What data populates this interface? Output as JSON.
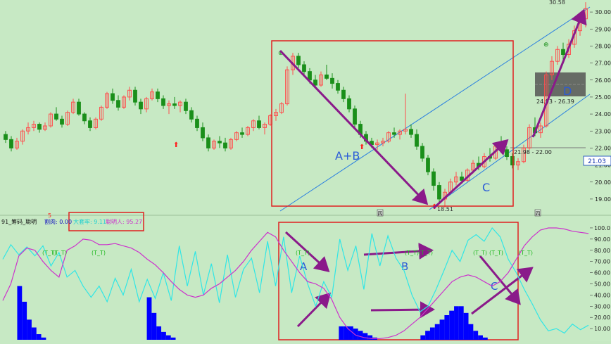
{
  "colors": {
    "background": "#c7e9c4",
    "axis_panel": "#c9ebc6",
    "up": "#ff4d4d",
    "down": "#1a8f1a",
    "cyan_line": "#2fe6e6",
    "magenta_line": "#cc33cc",
    "volume_bars": "#0000ff",
    "arrow": "#8a1a8a",
    "box": "#e02020",
    "trend_line": "#2a7fe0",
    "label_blue": "#2a5bd7",
    "band": "#555555",
    "header_blue": "#1010c0"
  },
  "price_axis": {
    "min": 18.5,
    "max": 30.5,
    "ticks": [
      "30.00",
      "29.00",
      "28.00",
      "27.00",
      "26.00",
      "25.00",
      "24.00",
      "23.00",
      "22.00",
      "21.00",
      "20.00",
      "19.00"
    ],
    "current_value": "21.03"
  },
  "indicator_axis": {
    "min": 0,
    "max": 105,
    "ticks": [
      "100.0",
      "90.00",
      "80.00",
      "70.00",
      "60.00",
      "50.00",
      "40.00",
      "30.00",
      "20.00",
      "10.00"
    ]
  },
  "annotations": {
    "high_label": "30.58",
    "low_label": "18.51",
    "range_label_1": "24.93 - 26.39",
    "range_label_2": "21.98 - 22.00",
    "label_ab": "A+B",
    "label_c": "C",
    "label_d": "D",
    "label_a_lower": "A",
    "label_b_lower": "B",
    "label_c_lower": "C",
    "tt_labels": [
      "(T_T)",
      "(T_T)",
      "(T_T)",
      "(T_T)",
      "(T_T)",
      "(T_T)",
      "(T_T)",
      "(T_T)",
      "(T_T)"
    ],
    "small_marker_top": "5",
    "date_marker_1": "四",
    "date_marker_2": "四"
  },
  "indicator_header": {
    "name": "91_筹码_聪明",
    "field_1": "割肉: 0.00",
    "field_2": "大套牢: 9.11",
    "field_3": "聪明人: 95.27"
  },
  "chart_data": [
    {
      "type": "candlestick",
      "title": "",
      "ylim": [
        18.5,
        30.5
      ],
      "candles": [
        [
          22.8,
          23.0,
          22.3,
          22.5
        ],
        [
          22.5,
          22.7,
          21.8,
          22.0
        ],
        [
          22.0,
          22.6,
          21.9,
          22.4
        ],
        [
          22.4,
          23.1,
          22.2,
          23.0
        ],
        [
          23.0,
          23.5,
          22.8,
          23.2
        ],
        [
          23.2,
          23.6,
          23.0,
          23.4
        ],
        [
          23.4,
          23.5,
          22.9,
          23.1
        ],
        [
          23.1,
          23.5,
          23.0,
          23.3
        ],
        [
          23.3,
          24.1,
          23.2,
          24.0
        ],
        [
          24.0,
          24.4,
          23.6,
          23.7
        ],
        [
          23.7,
          23.9,
          23.2,
          23.4
        ],
        [
          23.4,
          24.2,
          23.3,
          24.1
        ],
        [
          24.1,
          24.9,
          24.0,
          24.7
        ],
        [
          24.7,
          24.9,
          23.9,
          24.0
        ],
        [
          24.0,
          24.1,
          23.4,
          23.6
        ],
        [
          23.6,
          23.8,
          23.0,
          23.2
        ],
        [
          23.2,
          23.8,
          23.1,
          23.7
        ],
        [
          23.7,
          24.5,
          23.6,
          24.4
        ],
        [
          24.4,
          25.3,
          24.3,
          25.2
        ],
        [
          25.2,
          25.5,
          24.6,
          24.8
        ],
        [
          24.8,
          25.1,
          24.2,
          24.4
        ],
        [
          24.4,
          25.1,
          24.3,
          25.0
        ],
        [
          25.0,
          25.6,
          24.8,
          25.4
        ],
        [
          25.4,
          25.6,
          24.5,
          24.7
        ],
        [
          24.7,
          24.9,
          24.0,
          24.3
        ],
        [
          24.3,
          25.0,
          24.1,
          24.9
        ],
        [
          24.9,
          25.5,
          24.8,
          25.3
        ],
        [
          25.3,
          25.5,
          24.7,
          24.9
        ],
        [
          24.9,
          25.1,
          24.3,
          24.5
        ],
        [
          24.5,
          24.8,
          24.0,
          24.6
        ],
        [
          24.6,
          25.0,
          24.3,
          24.5
        ],
        [
          24.5,
          24.8,
          24.1,
          24.7
        ],
        [
          24.7,
          24.9,
          24.0,
          24.2
        ],
        [
          24.2,
          24.4,
          23.5,
          23.7
        ],
        [
          23.7,
          23.9,
          23.0,
          23.2
        ],
        [
          23.2,
          23.5,
          22.4,
          22.6
        ],
        [
          22.6,
          22.8,
          21.8,
          22.0
        ],
        [
          22.0,
          22.5,
          21.9,
          22.4
        ],
        [
          22.4,
          22.7,
          22.0,
          22.3
        ],
        [
          22.3,
          22.6,
          21.8,
          22.0
        ],
        [
          22.0,
          22.6,
          21.9,
          22.5
        ],
        [
          22.5,
          23.0,
          22.4,
          22.9
        ],
        [
          22.9,
          23.2,
          22.6,
          22.8
        ],
        [
          22.8,
          23.3,
          22.7,
          23.2
        ],
        [
          23.2,
          23.7,
          23.0,
          23.6
        ],
        [
          23.6,
          23.9,
          23.1,
          23.2
        ],
        [
          23.2,
          23.5,
          22.8,
          23.4
        ],
        [
          23.4,
          24.0,
          23.3,
          23.9
        ],
        [
          23.9,
          24.3,
          23.6,
          24.1
        ],
        [
          24.1,
          24.7,
          24.0,
          24.6
        ],
        [
          24.6,
          26.8,
          24.5,
          26.6
        ],
        [
          26.6,
          27.6,
          26.3,
          27.4
        ],
        [
          27.4,
          27.6,
          26.7,
          26.9
        ],
        [
          26.9,
          27.1,
          26.2,
          26.5
        ],
        [
          26.5,
          26.7,
          25.8,
          26.0
        ],
        [
          26.0,
          26.3,
          25.5,
          25.7
        ],
        [
          25.7,
          26.5,
          25.6,
          26.3
        ],
        [
          26.3,
          26.9,
          26.0,
          26.1
        ],
        [
          26.1,
          26.4,
          25.5,
          25.8
        ],
        [
          25.8,
          26.0,
          25.2,
          25.4
        ],
        [
          25.4,
          25.6,
          24.7,
          24.9
        ],
        [
          24.9,
          25.1,
          24.1,
          24.3
        ],
        [
          24.3,
          24.5,
          23.2,
          23.4
        ],
        [
          23.4,
          23.6,
          22.6,
          22.8
        ],
        [
          22.8,
          23.0,
          22.2,
          22.4
        ],
        [
          22.4,
          22.6,
          22.0,
          22.2
        ],
        [
          22.2,
          22.5,
          21.9,
          22.3
        ],
        [
          22.3,
          22.6,
          22.1,
          22.4
        ],
        [
          22.4,
          23.0,
          22.3,
          22.9
        ],
        [
          22.9,
          23.2,
          22.6,
          22.8
        ],
        [
          22.8,
          23.1,
          22.5,
          23.0
        ],
        [
          23.0,
          25.2,
          22.8,
          23.1
        ],
        [
          23.1,
          23.4,
          22.6,
          22.8
        ],
        [
          22.8,
          23.1,
          21.9,
          22.1
        ],
        [
          22.1,
          22.3,
          21.2,
          21.4
        ],
        [
          21.4,
          21.6,
          20.4,
          20.6
        ],
        [
          20.6,
          20.8,
          19.5,
          19.8
        ],
        [
          19.8,
          20.0,
          18.8,
          19.0
        ],
        [
          19.0,
          19.6,
          18.5,
          19.4
        ],
        [
          19.4,
          20.2,
          19.3,
          20.0
        ],
        [
          20.0,
          20.6,
          19.8,
          20.3
        ],
        [
          20.3,
          20.6,
          19.9,
          20.1
        ],
        [
          20.1,
          20.8,
          20.0,
          20.7
        ],
        [
          20.7,
          21.3,
          20.5,
          21.1
        ],
        [
          21.1,
          21.5,
          20.7,
          20.9
        ],
        [
          20.9,
          21.7,
          20.8,
          21.5
        ],
        [
          21.5,
          22.0,
          21.2,
          21.4
        ],
        [
          21.4,
          22.3,
          21.3,
          22.1
        ],
        [
          22.1,
          22.7,
          21.8,
          21.9
        ],
        [
          21.9,
          22.1,
          21.3,
          21.5
        ],
        [
          21.5,
          21.7,
          20.8,
          21.0
        ],
        [
          21.0,
          21.4,
          20.7,
          21.2
        ],
        [
          21.2,
          22.2,
          21.1,
          22.0
        ],
        [
          22.0,
          23.4,
          21.9,
          23.2
        ],
        [
          23.2,
          23.8,
          22.7,
          22.9
        ],
        [
          22.9,
          23.5,
          22.6,
          23.3
        ],
        [
          23.3,
          26.5,
          23.2,
          26.3
        ],
        [
          26.3,
          27.4,
          26.0,
          27.1
        ],
        [
          27.1,
          28.0,
          26.9,
          27.8
        ],
        [
          27.8,
          28.2,
          27.2,
          27.5
        ],
        [
          27.5,
          28.4,
          27.3,
          28.1
        ],
        [
          28.1,
          29.2,
          27.9,
          28.9
        ],
        [
          28.9,
          29.9,
          28.6,
          29.6
        ],
        [
          29.6,
          30.58,
          29.1,
          30.2
        ]
      ]
    },
    {
      "type": "line",
      "title": "",
      "ylim": [
        0,
        105
      ],
      "series": [
        {
          "name": "",
          "color": "#2fe6e6",
          "values": [
            72,
            85,
            76,
            83,
            75,
            84,
            66,
            78,
            56,
            62,
            48,
            38,
            48,
            34,
            55,
            40,
            63,
            34,
            54,
            37,
            60,
            35,
            84,
            48,
            79,
            40,
            68,
            33,
            76,
            38,
            63,
            73,
            42,
            88,
            48,
            92,
            42,
            75,
            50,
            30,
            52,
            38,
            90,
            62,
            84,
            45,
            95,
            66,
            93,
            73,
            62,
            40,
            25,
            30,
            45,
            62,
            80,
            70,
            89,
            94,
            88,
            100,
            92,
            72,
            60,
            45,
            32,
            18,
            8,
            10,
            6,
            14,
            9,
            13
          ]
        },
        {
          "name": "",
          "color": "#cc33cc",
          "values": [
            35,
            50,
            75,
            82,
            80,
            70,
            62,
            56,
            80,
            84,
            90,
            89,
            85,
            85,
            86,
            84,
            82,
            78,
            72,
            67,
            60,
            52,
            45,
            40,
            38,
            40,
            46,
            50,
            56,
            62,
            70,
            80,
            88,
            96,
            92,
            80,
            70,
            60,
            52,
            50,
            46,
            36,
            20,
            10,
            4,
            2,
            1,
            1,
            2,
            4,
            8,
            14,
            20,
            28,
            36,
            44,
            52,
            56,
            58,
            56,
            52,
            48,
            52,
            60,
            72,
            84,
            92,
            98,
            100,
            100,
            99,
            97,
            96,
            95
          ]
        }
      ]
    },
    {
      "type": "bar",
      "title": "",
      "ylim": [
        0,
        105
      ],
      "values": [
        0,
        0,
        0,
        48,
        34,
        18,
        11,
        5,
        2,
        0,
        0,
        0,
        0,
        0,
        0,
        0,
        0,
        0,
        0,
        0,
        0,
        0,
        0,
        0,
        0,
        0,
        0,
        0,
        0,
        0,
        38,
        24,
        12,
        7,
        4,
        2,
        0,
        0,
        0,
        0,
        0,
        0,
        0,
        0,
        0,
        0,
        0,
        0,
        0,
        0,
        0,
        0,
        0,
        0,
        0,
        0,
        0,
        0,
        0,
        0,
        0,
        0,
        0,
        0,
        0,
        0,
        0,
        0,
        0,
        0,
        12,
        12,
        12,
        10,
        8,
        6,
        4,
        2,
        0,
        0,
        0,
        0,
        0,
        0,
        0,
        0,
        0,
        4,
        8,
        11,
        14,
        18,
        22,
        26,
        30,
        30,
        24,
        14,
        8,
        4,
        2,
        0,
        0,
        0,
        0,
        0,
        0,
        0,
        0,
        0,
        0,
        0,
        0,
        0,
        0,
        0,
        0,
        0,
        0,
        0,
        0,
        0
      ]
    }
  ]
}
